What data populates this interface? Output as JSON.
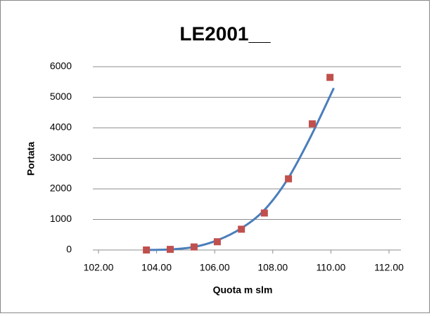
{
  "chart_data": {
    "type": "scatter",
    "title": "LE2001__",
    "xlabel": "Quota m slm",
    "ylabel": "Portata",
    "series": [
      {
        "color": "#c0504d",
        "x": [
          103.65,
          104.47,
          105.29,
          106.09,
          106.92,
          107.71,
          108.54,
          109.36,
          109.97
        ],
        "values": [
          0,
          20,
          100,
          270,
          680,
          1210,
          2330,
          4130,
          5650
        ]
      }
    ],
    "trendline": {
      "color": "#4a7ebb",
      "x": [
        103.65,
        104.5,
        105.3,
        106.1,
        106.9,
        107.7,
        108.5,
        109.3,
        110.1
      ],
      "values": [
        0,
        20,
        100,
        320,
        700,
        1300,
        2300,
        3700,
        5300
      ]
    },
    "xlim": [
      102,
      112
    ],
    "xticks": [
      {
        "value": 102,
        "label": "102.00"
      },
      {
        "value": 104,
        "label": "104.00"
      },
      {
        "value": 106,
        "label": "106.00"
      },
      {
        "value": 108,
        "label": "108.00"
      },
      {
        "value": 110,
        "label": "110.00"
      },
      {
        "value": 112,
        "label": "112.00"
      }
    ],
    "ylim": [
      0,
      6000
    ],
    "yticks": [
      0,
      1000,
      2000,
      3000,
      4000,
      5000,
      6000
    ],
    "grid": true
  }
}
